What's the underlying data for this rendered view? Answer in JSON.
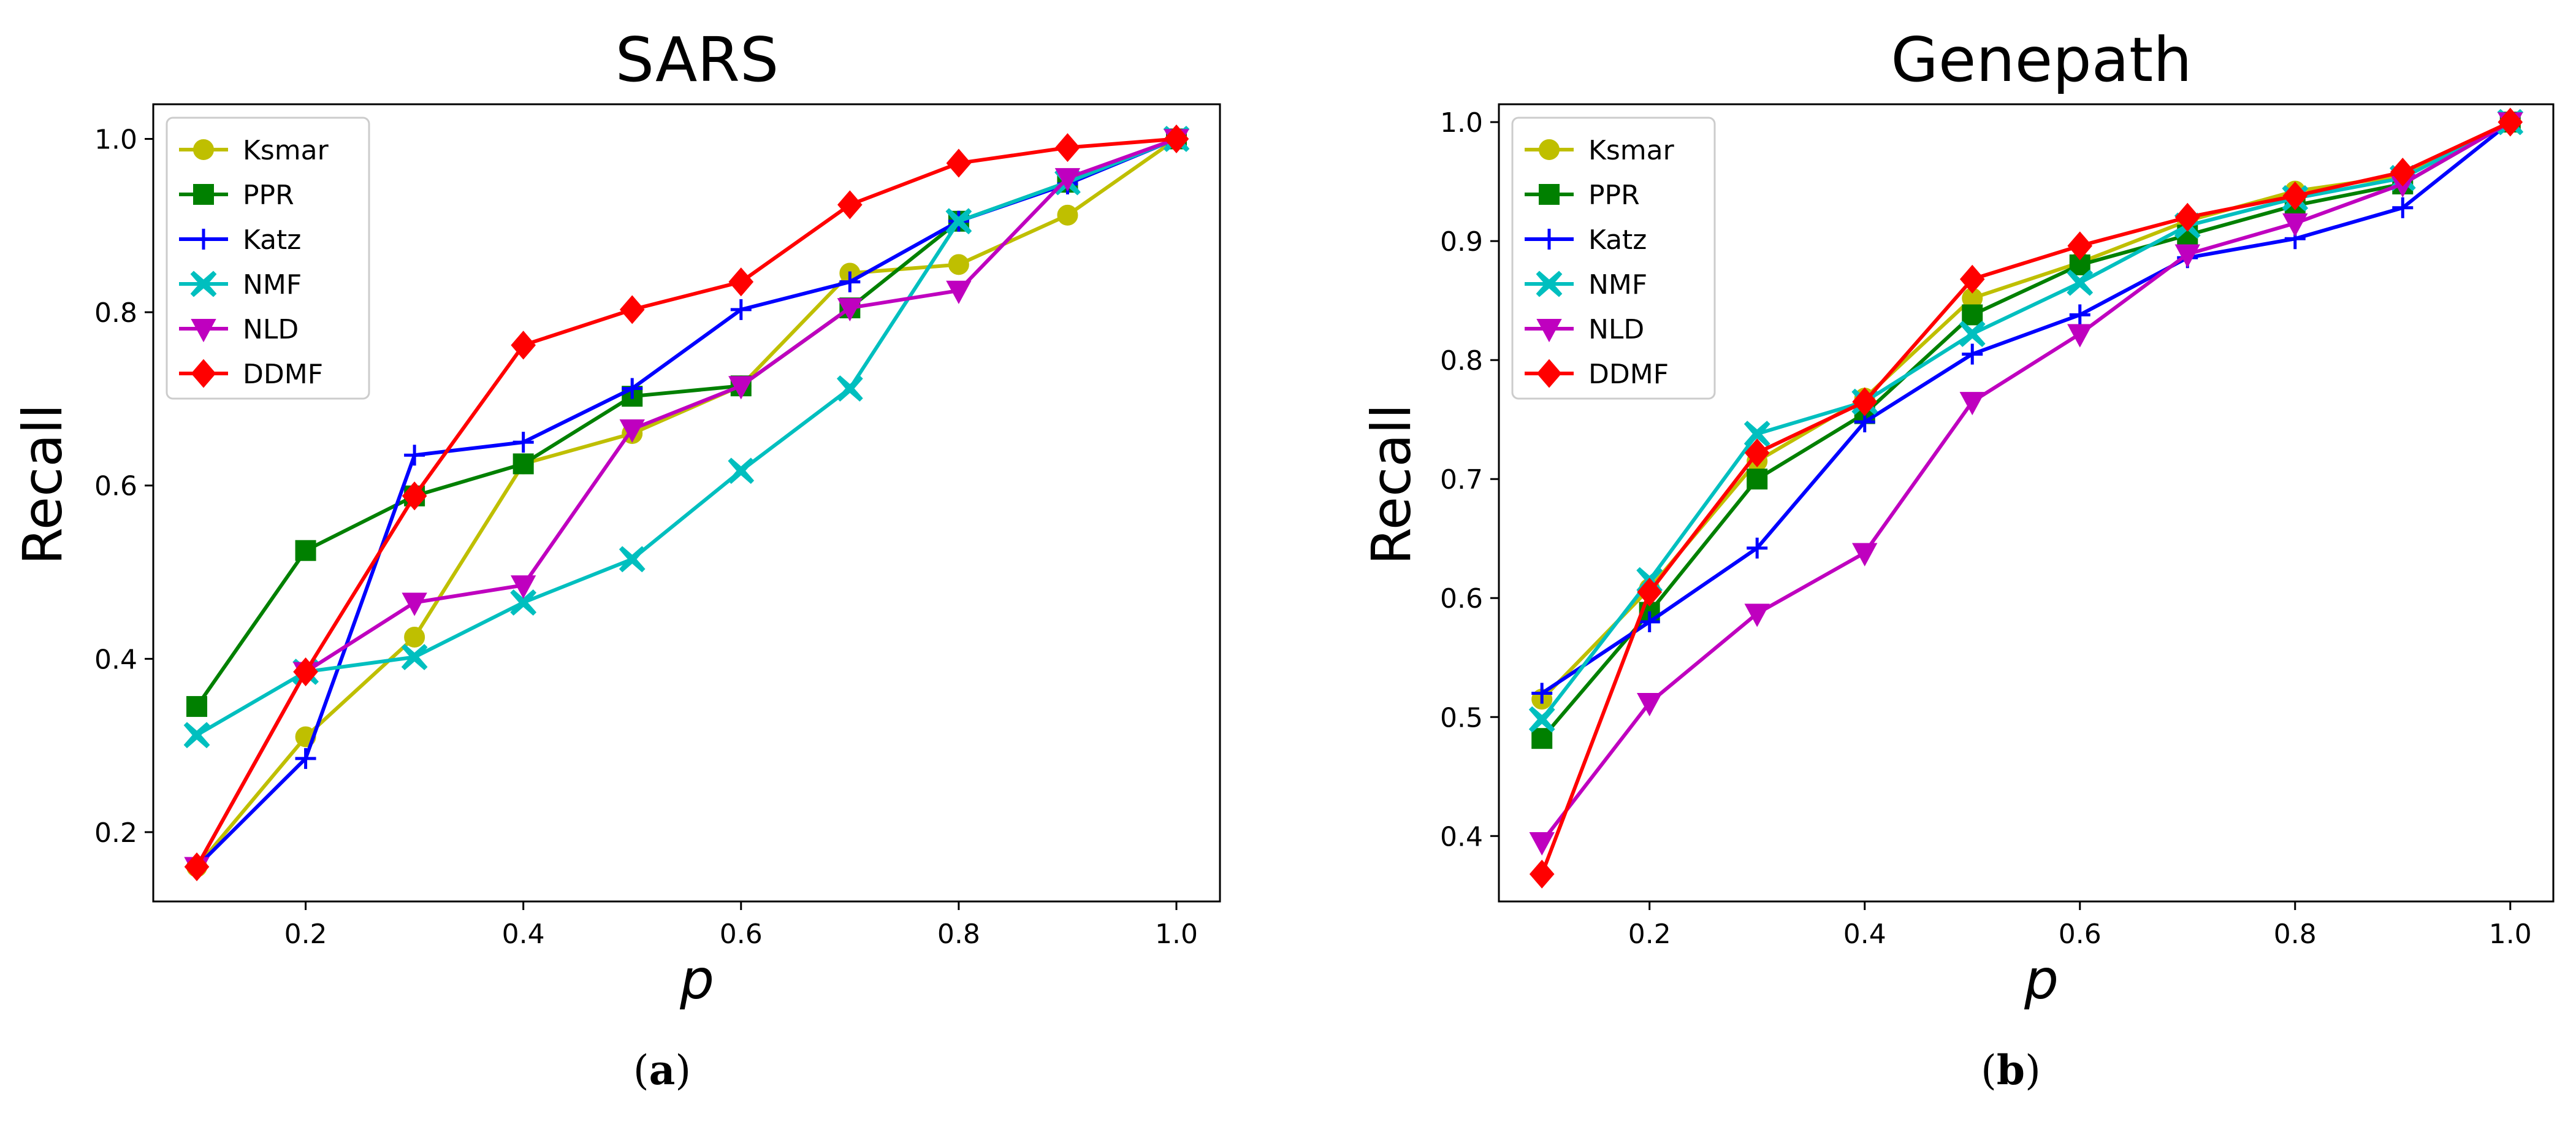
{
  "chart_data": [
    {
      "type": "line",
      "title": "SARS",
      "xlabel": "p",
      "ylabel": "Recall",
      "caption_letter": "a",
      "xlim": [
        0.06,
        1.04
      ],
      "ylim": [
        0.12,
        1.04
      ],
      "xticks": [
        0.2,
        0.4,
        0.6,
        0.8,
        1.0
      ],
      "xtick_labels": [
        "0.2",
        "0.4",
        "0.6",
        "0.8",
        "1.0"
      ],
      "yticks": [
        0.2,
        0.4,
        0.6,
        0.8,
        1.0
      ],
      "ytick_labels": [
        "0.2",
        "0.4",
        "0.6",
        "0.8",
        "1.0"
      ],
      "legend_position": "top-left",
      "x": [
        0.1,
        0.2,
        0.3,
        0.4,
        0.5,
        0.6,
        0.7,
        0.8,
        0.9,
        1.0
      ],
      "series": [
        {
          "name": "Ksmar",
          "color": "#bfbf00",
          "marker": "circle",
          "values": [
            0.16,
            0.31,
            0.425,
            0.625,
            0.66,
            0.715,
            0.845,
            0.855,
            0.912,
            1.0
          ]
        },
        {
          "name": "PPR",
          "color": "#008000",
          "marker": "square",
          "values": [
            0.345,
            0.525,
            0.588,
            0.625,
            0.703,
            0.715,
            0.805,
            0.905,
            0.95,
            1.0
          ]
        },
        {
          "name": "Katz",
          "color": "#0000ff",
          "marker": "plus",
          "values": [
            0.16,
            0.285,
            0.635,
            0.65,
            0.712,
            0.803,
            0.835,
            0.905,
            0.948,
            1.0
          ]
        },
        {
          "name": "NMF",
          "color": "#00bfbf",
          "marker": "x",
          "values": [
            0.312,
            0.385,
            0.402,
            0.465,
            0.515,
            0.617,
            0.712,
            0.905,
            0.95,
            1.0
          ]
        },
        {
          "name": "NLD",
          "color": "#bf00bf",
          "marker": "triangle-down",
          "values": [
            0.16,
            0.385,
            0.465,
            0.485,
            0.665,
            0.715,
            0.805,
            0.825,
            0.955,
            1.0
          ]
        },
        {
          "name": "DDMF",
          "color": "#ff0000",
          "marker": "diamond",
          "values": [
            0.16,
            0.385,
            0.588,
            0.762,
            0.803,
            0.835,
            0.924,
            0.972,
            0.99,
            1.0
          ]
        }
      ]
    },
    {
      "type": "line",
      "title": "Genepath",
      "xlabel": "p",
      "ylabel": "Recall",
      "caption_letter": "b",
      "xlim": [
        0.06,
        1.04
      ],
      "ylim": [
        0.345,
        1.015
      ],
      "xticks": [
        0.2,
        0.4,
        0.6,
        0.8,
        1.0
      ],
      "xtick_labels": [
        "0.2",
        "0.4",
        "0.6",
        "0.8",
        "1.0"
      ],
      "yticks": [
        0.4,
        0.5,
        0.6,
        0.7,
        0.8,
        0.9,
        1.0
      ],
      "ytick_labels": [
        "0.4",
        "0.5",
        "0.6",
        "0.7",
        "0.8",
        "0.9",
        "1.0"
      ],
      "legend_position": "top-left",
      "x": [
        0.1,
        0.2,
        0.3,
        0.4,
        0.5,
        0.6,
        0.7,
        0.8,
        0.9,
        1.0
      ],
      "series": [
        {
          "name": "Ksmar",
          "color": "#bfbf00",
          "marker": "circle",
          "values": [
            0.515,
            0.608,
            0.715,
            0.768,
            0.852,
            0.882,
            0.917,
            0.942,
            0.955,
            1.0
          ]
        },
        {
          "name": "PPR",
          "color": "#008000",
          "marker": "square",
          "values": [
            0.482,
            0.588,
            0.7,
            0.755,
            0.838,
            0.88,
            0.905,
            0.93,
            0.948,
            1.0
          ]
        },
        {
          "name": "Katz",
          "color": "#0000ff",
          "marker": "plus",
          "values": [
            0.52,
            0.58,
            0.642,
            0.748,
            0.805,
            0.838,
            0.886,
            0.902,
            0.928,
            1.0
          ]
        },
        {
          "name": "NMF",
          "color": "#00bfbf",
          "marker": "x",
          "values": [
            0.498,
            0.615,
            0.738,
            0.765,
            0.822,
            0.865,
            0.913,
            0.936,
            0.953,
            1.0
          ]
        },
        {
          "name": "NLD",
          "color": "#bf00bf",
          "marker": "triangle-down",
          "values": [
            0.395,
            0.512,
            0.587,
            0.638,
            0.765,
            0.822,
            0.889,
            0.915,
            0.948,
            1.0
          ]
        },
        {
          "name": "DDMF",
          "color": "#ff0000",
          "marker": "diamond",
          "values": [
            0.368,
            0.605,
            0.722,
            0.765,
            0.868,
            0.896,
            0.92,
            0.938,
            0.958,
            1.0
          ]
        }
      ]
    }
  ]
}
